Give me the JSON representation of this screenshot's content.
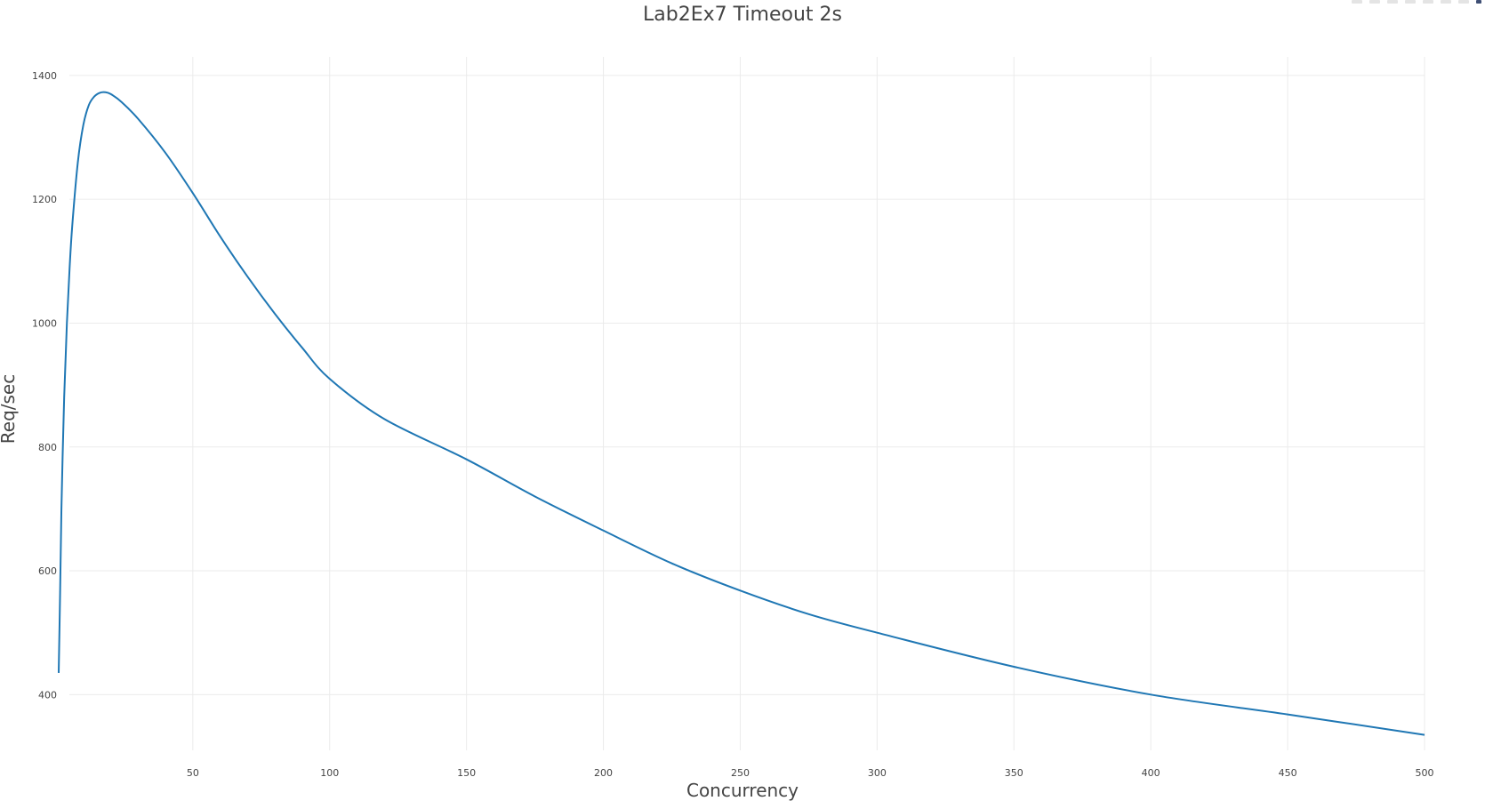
{
  "chart_data": {
    "type": "line",
    "title": "Lab2Ex7 Timeout 2s",
    "xlabel": "Concurrency",
    "ylabel": "Req/sec",
    "xlim": [
      1,
      500
    ],
    "ylim": [
      310,
      1430
    ],
    "xticks": [
      50,
      100,
      150,
      200,
      250,
      300,
      350,
      400,
      450,
      500
    ],
    "yticks": [
      400,
      600,
      800,
      1000,
      1200,
      1400
    ],
    "grid": true,
    "series": [
      {
        "color": "#1f77b4",
        "x": [
          1,
          1.5,
          2,
          3,
          4,
          5,
          6,
          8,
          10,
          12,
          14,
          16,
          18,
          20,
          24,
          30,
          40,
          50,
          60,
          70,
          80,
          90,
          100,
          120,
          150,
          175,
          200,
          225,
          250,
          275,
          300,
          350,
          400,
          450,
          500
        ],
        "y": [
          435,
          560,
          700,
          880,
          1000,
          1090,
          1160,
          1260,
          1320,
          1352,
          1366,
          1372,
          1373,
          1370,
          1357,
          1330,
          1275,
          1210,
          1140,
          1075,
          1015,
          960,
          910,
          845,
          780,
          720,
          665,
          612,
          568,
          530,
          500,
          445,
          400,
          368,
          335
        ]
      }
    ]
  },
  "modebar": {
    "icons": [
      "camera-icon",
      "zoom-icon",
      "pan-icon",
      "zoom-in-icon",
      "zoom-out-icon",
      "autoscale-icon",
      "reset-axes-icon",
      "plotly-logo-icon"
    ]
  }
}
